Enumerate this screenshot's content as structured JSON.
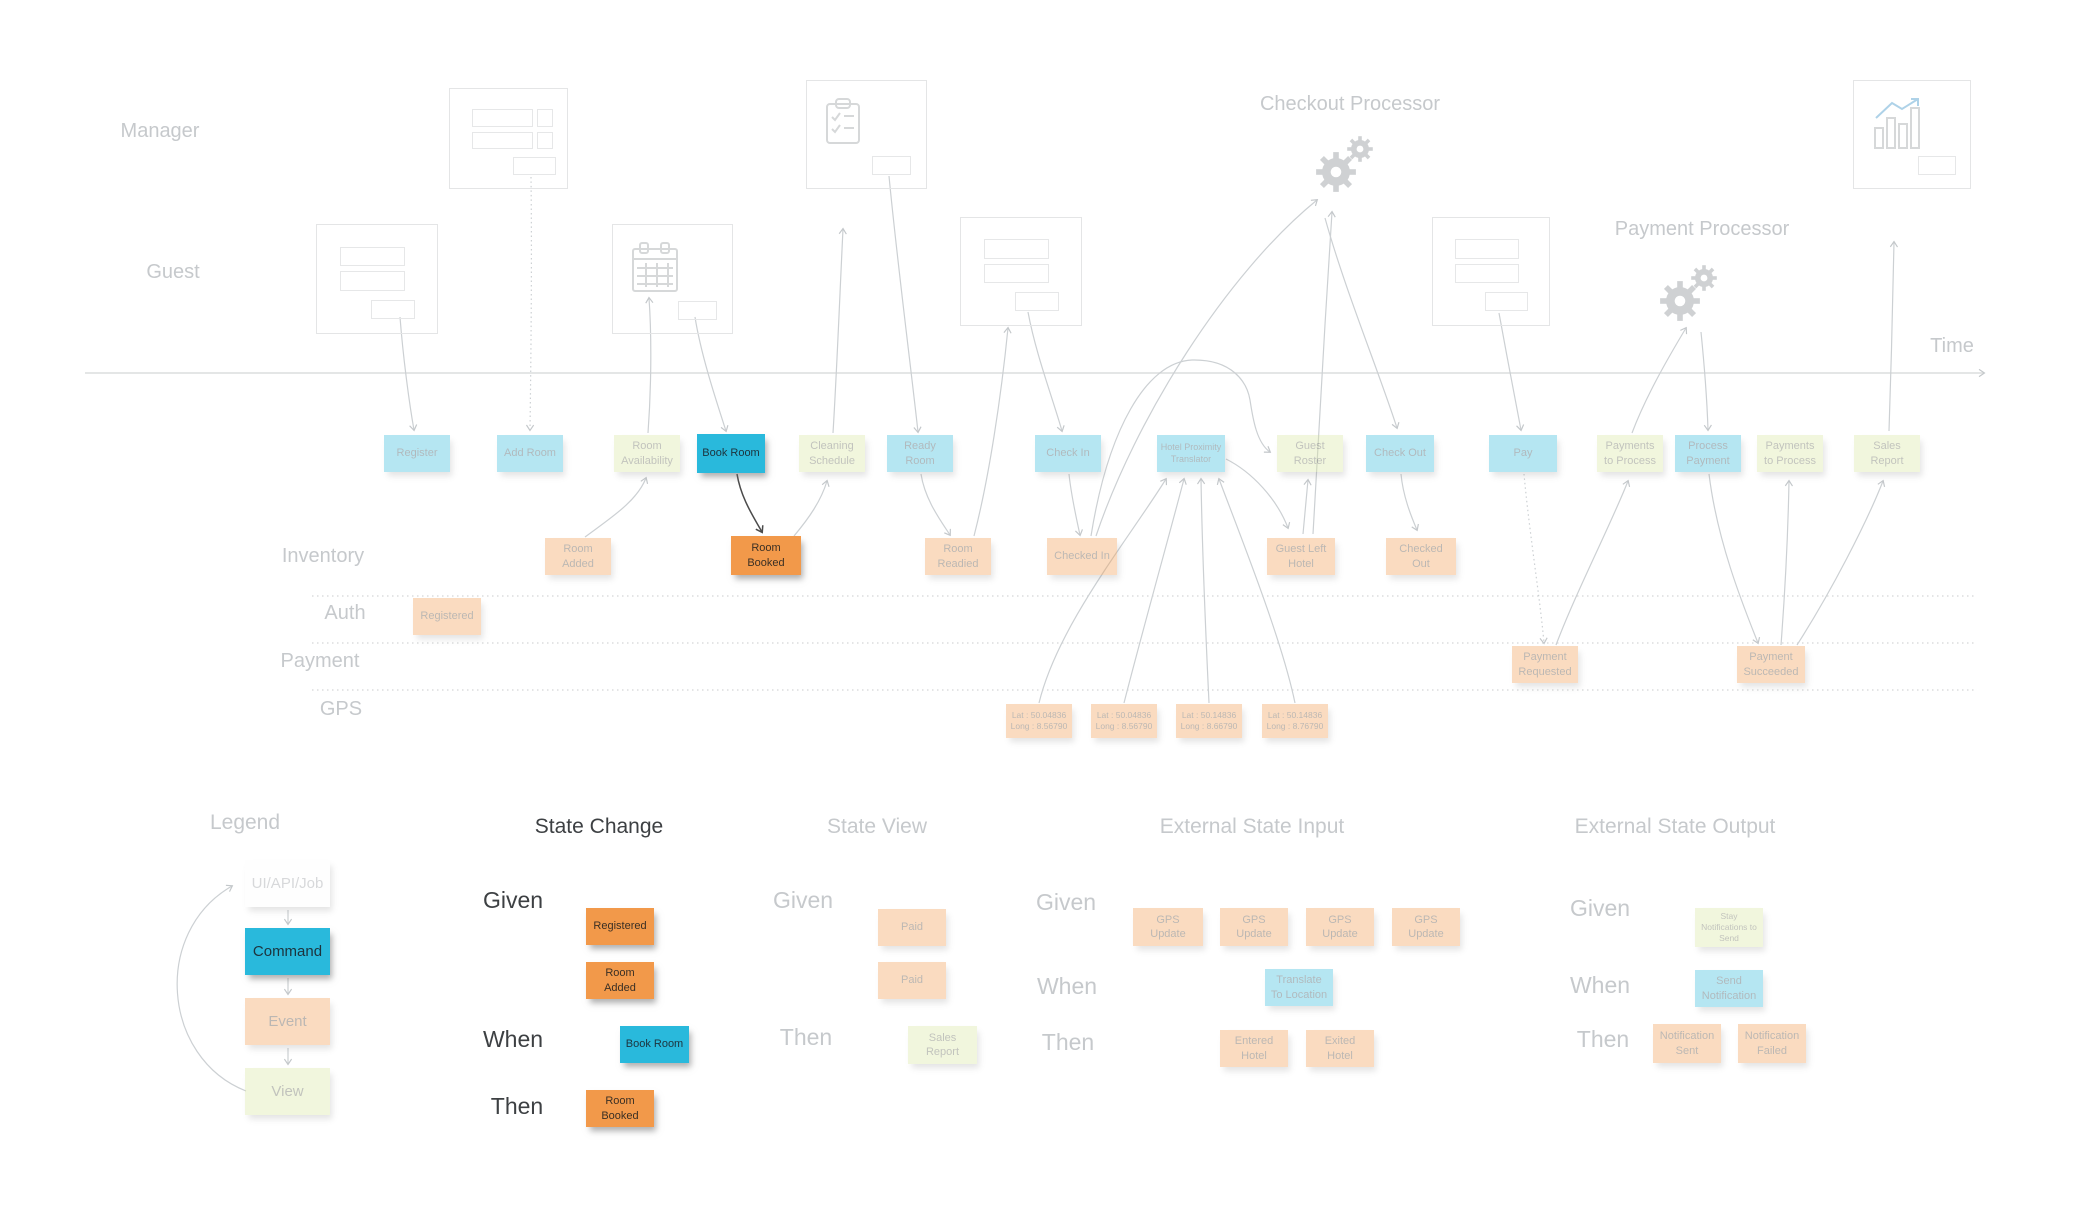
{
  "colors": {
    "command": "#29b9dc",
    "event": "#f2994a",
    "view": "#d9e59e",
    "connector": "#c9cdd0",
    "highlight_arrow": "#4b4b4b"
  },
  "actors": [
    {
      "id": "manager",
      "label": "Manager"
    },
    {
      "id": "guest",
      "label": "Guest"
    }
  ],
  "processors": [
    {
      "id": "checkout-processor",
      "label": "Checkout Processor"
    },
    {
      "id": "payment-processor",
      "label": "Payment Processor"
    }
  ],
  "timeline": {
    "label": "Time"
  },
  "lanes": [
    {
      "id": "inventory",
      "label": "Inventory"
    },
    {
      "id": "auth",
      "label": "Auth"
    },
    {
      "id": "payment",
      "label": "Payment"
    },
    {
      "id": "gps",
      "label": "GPS"
    }
  ],
  "stickies": [
    {
      "id": "register",
      "label": "Register",
      "type": "command",
      "faded": true
    },
    {
      "id": "add-room",
      "label": "Add Room",
      "type": "command",
      "faded": true
    },
    {
      "id": "room-availability",
      "label": "Room\nAvailability",
      "type": "view",
      "faded": true
    },
    {
      "id": "book-room",
      "label": "Book Room",
      "type": "command",
      "faded": false
    },
    {
      "id": "cleaning-schedule",
      "label": "Cleaning\nSchedule",
      "type": "view",
      "faded": true
    },
    {
      "id": "ready-room",
      "label": "Ready\nRoom",
      "type": "command",
      "faded": true
    },
    {
      "id": "check-in",
      "label": "Check In",
      "type": "command",
      "faded": true
    },
    {
      "id": "hotel-proximity-translator",
      "label": "Hotel Proximity\nTranslator",
      "type": "command",
      "faded": true
    },
    {
      "id": "guest-roster",
      "label": "Guest\nRoster",
      "type": "view",
      "faded": true
    },
    {
      "id": "check-out",
      "label": "Check Out",
      "type": "command",
      "faded": true
    },
    {
      "id": "pay",
      "label": "Pay",
      "type": "command",
      "faded": true
    },
    {
      "id": "payments-to-process-1",
      "label": "Payments\nto Process",
      "type": "view",
      "faded": true
    },
    {
      "id": "process-payment",
      "label": "Process\nPayment",
      "type": "command",
      "faded": true
    },
    {
      "id": "payments-to-process-2",
      "label": "Payments\nto Process",
      "type": "view",
      "faded": true
    },
    {
      "id": "sales-report",
      "label": "Sales\nReport",
      "type": "view",
      "faded": true
    },
    {
      "id": "room-added",
      "label": "Room\nAdded",
      "type": "event",
      "faded": true
    },
    {
      "id": "room-booked",
      "label": "Room\nBooked",
      "type": "event",
      "faded": false
    },
    {
      "id": "room-readied",
      "label": "Room\nReadied",
      "type": "event",
      "faded": true
    },
    {
      "id": "checked-in",
      "label": "Checked In",
      "type": "event",
      "faded": true
    },
    {
      "id": "guest-left-hotel",
      "label": "Guest Left\nHotel",
      "type": "event",
      "faded": true
    },
    {
      "id": "checked-out",
      "label": "Checked\nOut",
      "type": "event",
      "faded": true
    },
    {
      "id": "registered",
      "label": "Registered",
      "type": "event",
      "faded": true
    },
    {
      "id": "payment-requested",
      "label": "Payment\nRequested",
      "type": "event",
      "faded": true
    },
    {
      "id": "payment-succeeded",
      "label": "Payment\nSucceeded",
      "type": "event",
      "faded": true
    },
    {
      "id": "gps-1",
      "label": "Lat : 50.04836\nLong : 8.56790",
      "type": "event",
      "faded": true
    },
    {
      "id": "gps-2",
      "label": "Lat : 50.04836\nLong : 8.56790",
      "type": "event",
      "faded": true
    },
    {
      "id": "gps-3",
      "label": "Lat : 50.14836\nLong : 8.66790",
      "type": "event",
      "faded": true
    },
    {
      "id": "gps-4",
      "label": "Lat : 50.14836\nLong : 8.76790",
      "type": "event",
      "faded": true
    }
  ],
  "legend": {
    "title": "Legend",
    "items": [
      {
        "id": "ui-api-job",
        "label": "UI/API/Job",
        "type": "neutral",
        "faded": true
      },
      {
        "id": "command",
        "label": "Command",
        "type": "command",
        "faded": false
      },
      {
        "id": "event",
        "label": "Event",
        "type": "event",
        "faded": true
      },
      {
        "id": "view",
        "label": "View",
        "type": "view",
        "faded": true
      }
    ]
  },
  "patterns": [
    {
      "id": "state-change",
      "title": "State Change",
      "faded": false,
      "rows": [
        {
          "label": "Given",
          "stickies": [
            {
              "label": "Registered",
              "type": "event"
            },
            {
              "label": "Room\nAdded",
              "type": "event"
            }
          ]
        },
        {
          "label": "When",
          "stickies": [
            {
              "label": "Book Room",
              "type": "command"
            }
          ]
        },
        {
          "label": "Then",
          "stickies": [
            {
              "label": "Room\nBooked",
              "type": "event"
            }
          ]
        }
      ]
    },
    {
      "id": "state-view",
      "title": "State View",
      "faded": true,
      "rows": [
        {
          "label": "Given",
          "stickies": [
            {
              "label": "Paid",
              "type": "event"
            },
            {
              "label": "Paid",
              "type": "event"
            }
          ]
        },
        {
          "label": "Then",
          "stickies": [
            {
              "label": "Sales\nReport",
              "type": "view"
            }
          ]
        }
      ]
    },
    {
      "id": "external-state-input",
      "title": "External State Input",
      "faded": true,
      "rows": [
        {
          "label": "Given",
          "stickies": [
            {
              "label": "GPS\nUpdate",
              "type": "event"
            },
            {
              "label": "GPS\nUpdate",
              "type": "event"
            },
            {
              "label": "GPS\nUpdate",
              "type": "event"
            },
            {
              "label": "GPS\nUpdate",
              "type": "event"
            }
          ]
        },
        {
          "label": "When",
          "stickies": [
            {
              "label": "Translate\nTo Location",
              "type": "command"
            }
          ]
        },
        {
          "label": "Then",
          "stickies": [
            {
              "label": "Entered\nHotel",
              "type": "event"
            },
            {
              "label": "Exited\nHotel",
              "type": "event"
            }
          ]
        }
      ]
    },
    {
      "id": "external-state-output",
      "title": "External State Output",
      "faded": true,
      "rows": [
        {
          "label": "Given",
          "stickies": [
            {
              "label": "Stay\nNotifications to\nSend",
              "type": "view"
            }
          ]
        },
        {
          "label": "When",
          "stickies": [
            {
              "label": "Send\nNotification",
              "type": "command"
            }
          ]
        },
        {
          "label": "Then",
          "stickies": [
            {
              "label": "Notification\nSent",
              "type": "event"
            },
            {
              "label": "Notification\nFailed",
              "type": "event"
            }
          ]
        }
      ]
    }
  ]
}
